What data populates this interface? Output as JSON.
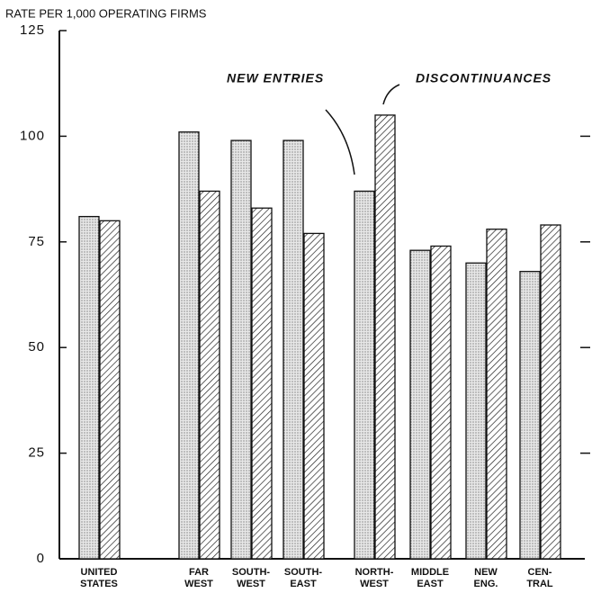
{
  "chart_data": {
    "type": "bar",
    "y_axis_label": "RATE PER 1,000 OPERATING FIRMS",
    "categories": [
      [
        "UNITED",
        "STATES"
      ],
      [
        "FAR",
        "WEST"
      ],
      [
        "SOUTH-",
        "WEST"
      ],
      [
        "SOUTH-",
        "EAST"
      ],
      [
        "NORTH-",
        "WEST"
      ],
      [
        "MIDDLE",
        "EAST"
      ],
      [
        "NEW",
        "ENG."
      ],
      [
        "CEN-",
        "TRAL"
      ]
    ],
    "series": [
      {
        "name": "NEW ENTRIES",
        "color": "#e4e4e4",
        "pattern": "dots",
        "values": [
          81,
          101,
          99,
          99,
          87,
          73,
          70,
          68
        ]
      },
      {
        "name": "DISCONTINUANCES",
        "color": "#ffffff",
        "pattern": "hatch",
        "values": [
          80,
          87,
          83,
          77,
          105,
          74,
          78,
          79
        ]
      }
    ],
    "ylim": [
      0,
      125
    ],
    "yticks": [
      0,
      25,
      50,
      75,
      100,
      125
    ]
  }
}
